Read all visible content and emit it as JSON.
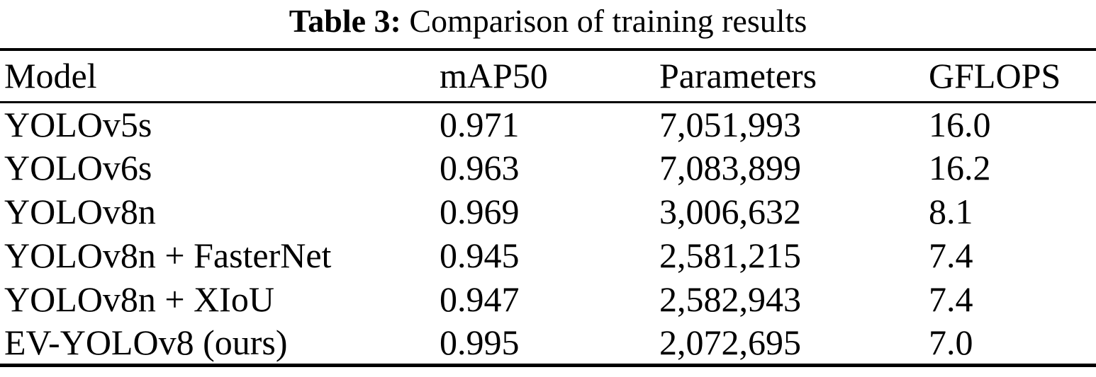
{
  "caption": {
    "label": "Table 3:",
    "text": "Comparison of training results"
  },
  "table": {
    "columns": [
      "Model",
      "mAP50",
      "Parameters",
      "GFLOPS"
    ],
    "rows": [
      [
        "YOLOv5s",
        "0.971",
        "7,051,993",
        "16.0"
      ],
      [
        "YOLOv6s",
        "0.963",
        "7,083,899",
        "16.2"
      ],
      [
        "YOLOv8n",
        "0.969",
        "3,006,632",
        "8.1"
      ],
      [
        "YOLOv8n + FasterNet",
        "0.945",
        "2,581,215",
        "7.4"
      ],
      [
        "YOLOv8n + XIoU",
        "0.947",
        "2,582,943",
        "7.4"
      ],
      [
        "EV-YOLOv8 (ours)",
        "0.995",
        "2,072,695",
        "7.0"
      ]
    ]
  },
  "chart_data": {
    "type": "table",
    "title": "Table 3: Comparison of training results",
    "columns": [
      "Model",
      "mAP50",
      "Parameters",
      "GFLOPS"
    ],
    "rows": [
      {
        "model": "YOLOv5s",
        "mAP50": 0.971,
        "parameters": 7051993,
        "gflops": 16.0
      },
      {
        "model": "YOLOv6s",
        "mAP50": 0.963,
        "parameters": 7083899,
        "gflops": 16.2
      },
      {
        "model": "YOLOv8n",
        "mAP50": 0.969,
        "parameters": 3006632,
        "gflops": 8.1
      },
      {
        "model": "YOLOv8n + FasterNet",
        "mAP50": 0.945,
        "parameters": 2581215,
        "gflops": 7.4
      },
      {
        "model": "YOLOv8n + XIoU",
        "mAP50": 0.947,
        "parameters": 2582943,
        "gflops": 7.4
      },
      {
        "model": "EV-YOLOv8 (ours)",
        "mAP50": 0.995,
        "parameters": 2072695,
        "gflops": 7.0
      }
    ]
  },
  "colors": {
    "text": "#000000",
    "background": "#ffffff",
    "rule": "#000000"
  }
}
